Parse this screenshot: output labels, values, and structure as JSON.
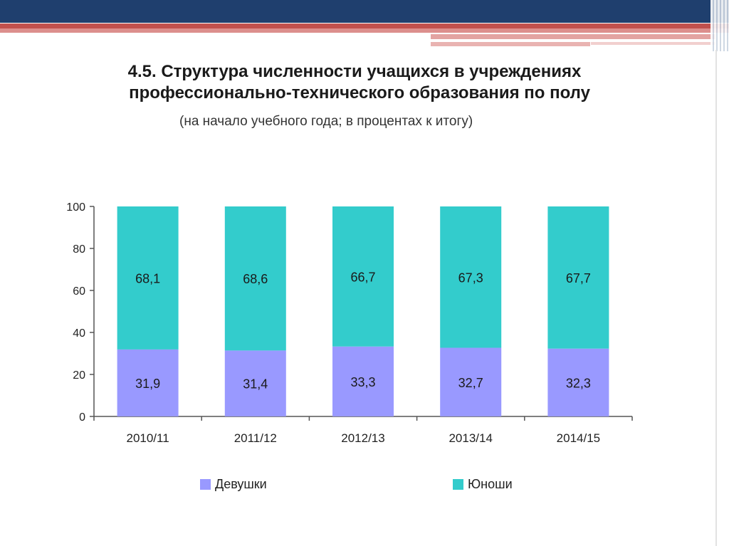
{
  "title_line1": "4.5. Структура численности учащихся в учреждениях",
  "title_line2": "профессионально-технического образования по полу",
  "subtitle": "(на начало учебного года; в процентах к итогу)",
  "colors": {
    "header_navy": "#1f3f6e",
    "header_red": "#c0504d",
    "girls": "#9999ff",
    "boys": "#33cccc"
  },
  "chart_data": {
    "type": "bar",
    "stacked": true,
    "categories": [
      "2010/11",
      "2011/12",
      "2012/13",
      "2013/14",
      "2014/15"
    ],
    "series": [
      {
        "name": "Девушки",
        "color": "#9999ff",
        "values": [
          31.9,
          31.4,
          33.3,
          32.7,
          32.3
        ],
        "labels": [
          "31,9",
          "31,4",
          "33,3",
          "32,7",
          "32,3"
        ]
      },
      {
        "name": "Юноши",
        "color": "#33cccc",
        "values": [
          68.1,
          68.6,
          66.7,
          67.3,
          67.7
        ],
        "labels": [
          "68,1",
          "68,6",
          "66,7",
          "67,3",
          "67,7"
        ]
      }
    ],
    "ylim": [
      0,
      100
    ],
    "yticks": [
      0,
      20,
      40,
      60,
      80,
      100
    ],
    "grid": false,
    "legend": "bottom"
  }
}
